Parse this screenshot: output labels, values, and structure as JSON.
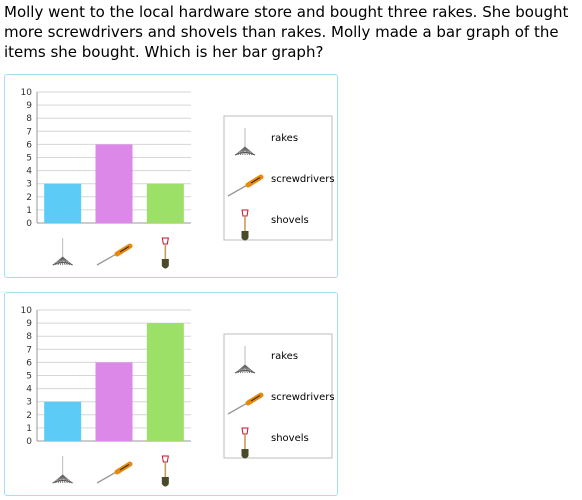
{
  "question": "Molly went to the local hardware store and bought three rakes. She bought more screwdrivers and shovels than rakes. Molly made a bar graph of the items she bought. Which is her bar graph?",
  "colors": {
    "rakes": "#5ccbf5",
    "screwdrivers": "#dc88e8",
    "shovels": "#9ce068",
    "border": "#a6dff0"
  },
  "chart_data": [
    {
      "type": "bar",
      "categories": [
        "rakes",
        "screwdrivers",
        "shovels"
      ],
      "values": [
        3,
        6,
        3
      ],
      "yticks": [
        "0",
        "1",
        "2",
        "3",
        "4",
        "5",
        "6",
        "7",
        "8",
        "9",
        "10"
      ],
      "ylim": [
        0,
        10
      ],
      "grid": true,
      "legend": [
        {
          "icon": "rake-icon",
          "label": "rakes"
        },
        {
          "icon": "screwdriver-icon",
          "label": "screwdrivers"
        },
        {
          "icon": "shovel-icon",
          "label": "shovels"
        }
      ],
      "legend_position": "right"
    },
    {
      "type": "bar",
      "categories": [
        "rakes",
        "screwdrivers",
        "shovels"
      ],
      "values": [
        3,
        6,
        9
      ],
      "yticks": [
        "0",
        "1",
        "2",
        "3",
        "4",
        "5",
        "6",
        "7",
        "8",
        "9",
        "10"
      ],
      "ylim": [
        0,
        10
      ],
      "grid": true,
      "legend": [
        {
          "icon": "rake-icon",
          "label": "rakes"
        },
        {
          "icon": "screwdriver-icon",
          "label": "screwdrivers"
        },
        {
          "icon": "shovel-icon",
          "label": "shovels"
        }
      ],
      "legend_position": "right"
    }
  ]
}
